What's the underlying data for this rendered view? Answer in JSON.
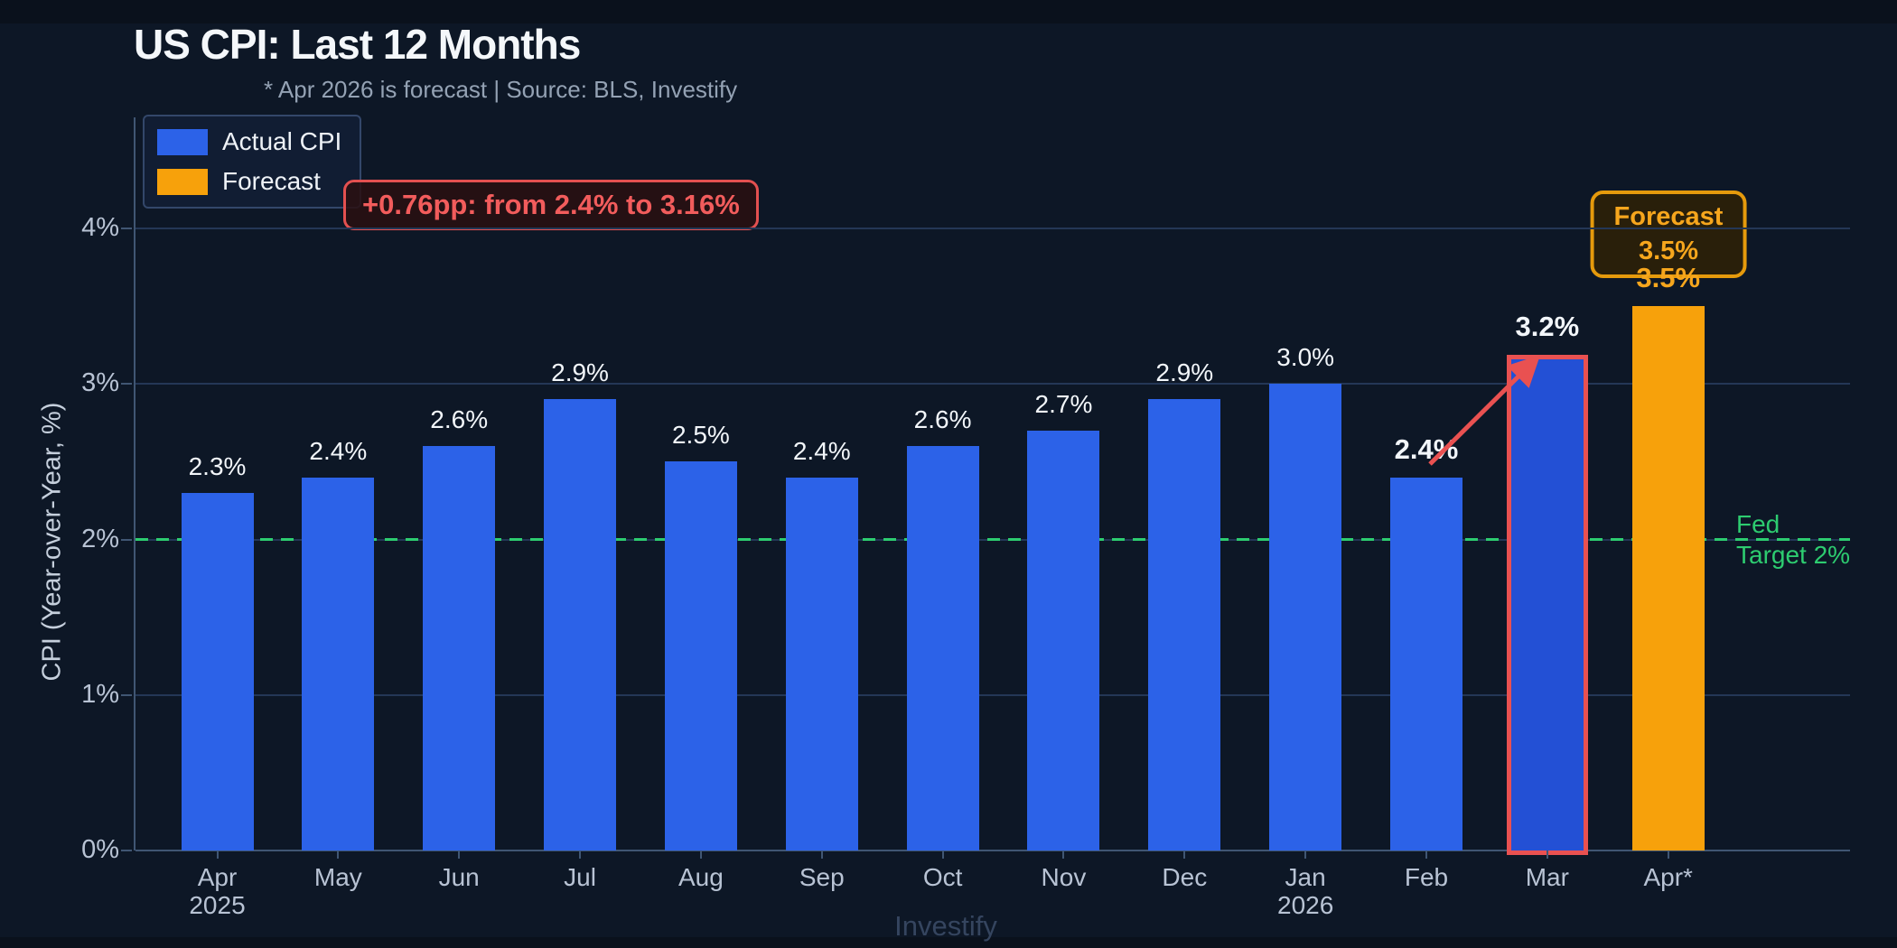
{
  "header": {
    "title": "US CPI: Last 12 Months",
    "subtitle": "* Apr 2026 is forecast  |  Source: BLS, Investify"
  },
  "legend": {
    "items": [
      {
        "label": "Actual CPI",
        "color": "#2c62e8"
      },
      {
        "label": "Forecast",
        "color": "#f7a10b"
      }
    ]
  },
  "annotations": {
    "change_callout": "+0.76pp: from 2.4% to 3.16%",
    "forecast_callout": {
      "line1": "Forecast",
      "line2": "3.5%"
    },
    "fed_target": {
      "line1": "Fed",
      "line2": "Target 2%"
    }
  },
  "watermark": "Investify",
  "colors": {
    "background": "#0d1726",
    "frame": "#0a111c",
    "actual_bar": "#2c62e8",
    "highlight_bar_fill": "#2350d5",
    "highlight_red": "#e95151",
    "forecast_bar": "#f7a10b",
    "target_green": "#2dcc70",
    "annotation_red_text": "#f25c5c",
    "forecast_orange_text": "#f6a61d",
    "grid": "#243756",
    "spine": "#405673",
    "tick_text": "#b8c3d4",
    "text_primary": "#f4f7fa",
    "text_muted": "#94a2b4"
  },
  "chart_data": {
    "type": "bar",
    "title": "US CPI: Last 12 Months",
    "xlabel": "",
    "ylabel": "CPI (Year-over-Year, %)",
    "ylim": [
      0,
      4.4
    ],
    "ytick_labels": [
      "0%",
      "1%",
      "2%",
      "3%",
      "4%"
    ],
    "ytick_values": [
      0,
      1,
      2,
      3,
      4
    ],
    "grid": true,
    "legend_position": "top-left",
    "target_line": {
      "value": 2.0,
      "label": "Fed Target 2%"
    },
    "categories": [
      "Apr 2025",
      "May",
      "Jun",
      "Jul",
      "Aug",
      "Sep",
      "Oct",
      "Nov",
      "Dec",
      "Jan 2026",
      "Feb",
      "Mar",
      "Apr*"
    ],
    "points": [
      {
        "month": "Apr",
        "year": "2025",
        "value": 2.3,
        "label": "2.3%",
        "kind": "actual"
      },
      {
        "month": "May",
        "value": 2.4,
        "label": "2.4%",
        "kind": "actual"
      },
      {
        "month": "Jun",
        "value": 2.6,
        "label": "2.6%",
        "kind": "actual"
      },
      {
        "month": "Jul",
        "value": 2.9,
        "label": "2.9%",
        "kind": "actual"
      },
      {
        "month": "Aug",
        "value": 2.5,
        "label": "2.5%",
        "kind": "actual"
      },
      {
        "month": "Sep",
        "value": 2.4,
        "label": "2.4%",
        "kind": "actual"
      },
      {
        "month": "Oct",
        "value": 2.6,
        "label": "2.6%",
        "kind": "actual"
      },
      {
        "month": "Nov",
        "value": 2.7,
        "label": "2.7%",
        "kind": "actual"
      },
      {
        "month": "Dec",
        "value": 2.9,
        "label": "2.9%",
        "kind": "actual"
      },
      {
        "month": "Jan",
        "year": "2026",
        "value": 3.0,
        "label": "3.0%",
        "kind": "actual"
      },
      {
        "month": "Feb",
        "value": 2.4,
        "label": "2.4%",
        "kind": "actual",
        "emphasis": true
      },
      {
        "month": "Mar",
        "value": 3.16,
        "label": "3.2%",
        "kind": "highlighted",
        "emphasis": true
      },
      {
        "month": "Apr*",
        "value": 3.5,
        "label": "3.5%",
        "kind": "forecast"
      }
    ]
  }
}
